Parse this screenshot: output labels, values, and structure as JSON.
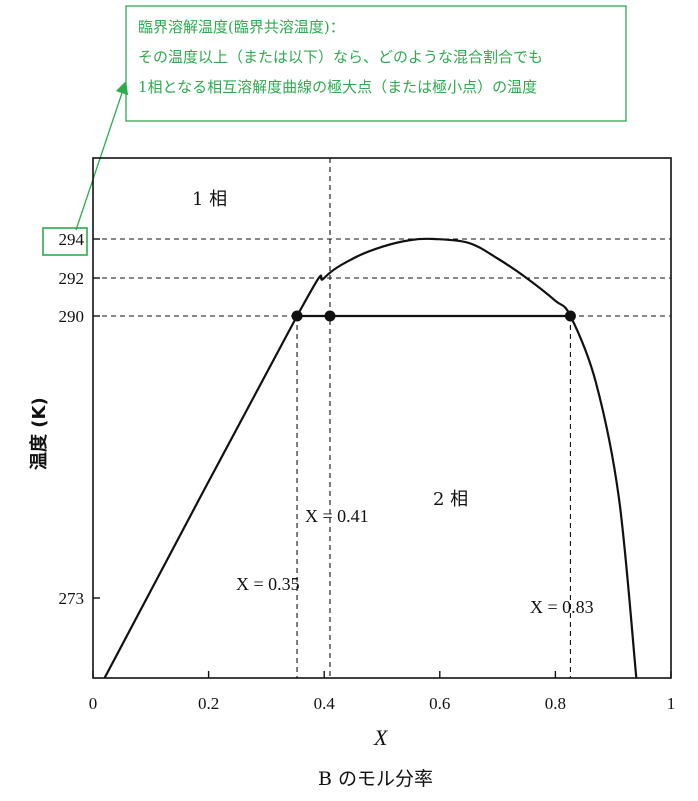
{
  "annotation": {
    "title": "臨界溶解温度(臨界共溶温度)：",
    "line1": "その温度以上（または以下）なら、どのような混合割合でも",
    "line2": "1相となる相互溶解度曲線の極大点（または極小点）の温度",
    "color": "#2eaa4f"
  },
  "chart_data": {
    "type": "line",
    "xlabel": "X",
    "ylabel": "温度 (K)",
    "caption": "B のモル分率",
    "xlim": [
      0,
      1
    ],
    "x_ticks": [
      "0",
      "0.2",
      "0.4",
      "0.6",
      "0.8",
      "1"
    ],
    "y_ticks": [
      {
        "value": 273,
        "label": "273"
      },
      {
        "value": 290,
        "label": "290"
      },
      {
        "value": 292,
        "label": "292"
      },
      {
        "value": 294,
        "label": "294"
      }
    ],
    "highlighted_tick": "294",
    "regions": {
      "one_phase": "1 相",
      "two_phase": "2 相"
    },
    "curve": {
      "x": [
        0.02,
        0.353,
        0.4,
        0.45,
        0.5,
        0.55,
        0.59,
        0.65,
        0.7,
        0.75,
        0.8,
        0.826,
        0.87,
        0.91,
        0.94
      ],
      "y": [
        268.0,
        290.0,
        292.0,
        293.0,
        293.6,
        293.95,
        294.0,
        293.8,
        293.0,
        292.0,
        290.8,
        290.0,
        286.0,
        279.0,
        268.0
      ]
    },
    "tie_line": {
      "temperature": 290,
      "x_start": 0.353,
      "x_end": 0.826
    },
    "points": [
      {
        "x": 0.353,
        "y": 290
      },
      {
        "x": 0.41,
        "y": 290
      },
      {
        "x": 0.826,
        "y": 290
      }
    ],
    "reference_lines": {
      "horizontal": [
        294,
        292,
        290
      ],
      "vertical_full": [
        0.41
      ],
      "vertical_lower": [
        0.353,
        0.826
      ]
    },
    "x_annotations": [
      {
        "text": "X = 0.41"
      },
      {
        "text": "X = 0.35"
      },
      {
        "text": "X = 0.83"
      }
    ]
  }
}
